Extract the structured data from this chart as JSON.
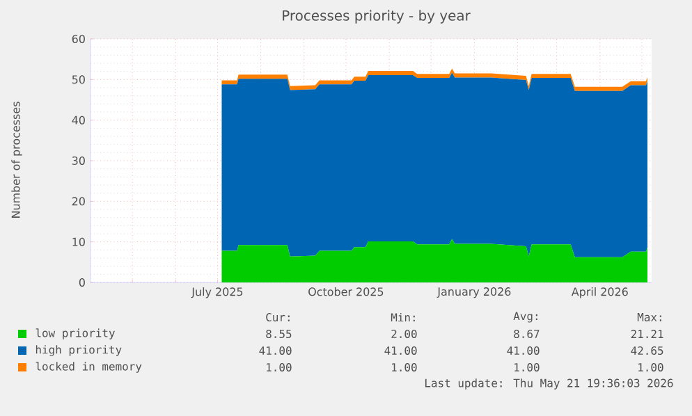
{
  "chart_data": {
    "type": "area",
    "stacked": true,
    "title": "Processes priority - by year",
    "ylabel": "Number of processes",
    "x": [
      "2025-07-04",
      "2025-07-15",
      "2025-07-16",
      "2025-08-20",
      "2025-08-22",
      "2025-09-09",
      "2025-09-12",
      "2025-10-05",
      "2025-10-07",
      "2025-10-15",
      "2025-10-17",
      "2025-11-18",
      "2025-11-21",
      "2025-12-14",
      "2025-12-16",
      "2025-12-18",
      "2026-01-13",
      "2026-02-07",
      "2026-02-09",
      "2026-02-11",
      "2026-03-11",
      "2026-03-14",
      "2026-04-17",
      "2026-04-23",
      "2026-05-04",
      "2026-05-05"
    ],
    "series": [
      {
        "name": "low priority",
        "color": "#00cc00",
        "values": [
          7.8,
          7.8,
          9.2,
          9.2,
          6.4,
          6.6,
          7.8,
          7.8,
          8.7,
          8.7,
          10.1,
          10.1,
          9.4,
          9.4,
          10.7,
          9.5,
          9.5,
          8.9,
          6.4,
          9.4,
          9.4,
          6.2,
          6.2,
          7.6,
          7.6,
          8.6
        ]
      },
      {
        "name": "high priority",
        "color": "#0066b3",
        "values": [
          41,
          41,
          41,
          41,
          41,
          41,
          41,
          41,
          41,
          41,
          41,
          41,
          41,
          41,
          41,
          41,
          41,
          41,
          41,
          41,
          41,
          41,
          41,
          41,
          41,
          41
        ]
      },
      {
        "name": "locked in memory",
        "color": "#ff8000",
        "values": [
          1,
          1,
          1,
          1,
          1,
          1,
          1,
          1,
          1,
          1,
          1,
          1,
          1,
          1,
          1,
          1,
          1,
          1,
          1,
          1,
          1,
          1,
          1,
          1,
          1,
          1
        ]
      }
    ],
    "xlim": [
      "2025-04-01",
      "2026-05-08"
    ],
    "xticks": [
      {
        "value": "2025-05-01",
        "label": null
      },
      {
        "value": "2025-06-01",
        "label": null
      },
      {
        "value": "2025-07-01",
        "label": "July 2025"
      },
      {
        "value": "2025-08-01",
        "label": null
      },
      {
        "value": "2025-09-01",
        "label": null
      },
      {
        "value": "2025-10-01",
        "label": "October 2025"
      },
      {
        "value": "2025-11-01",
        "label": null
      },
      {
        "value": "2025-12-01",
        "label": null
      },
      {
        "value": "2026-01-01",
        "label": "January 2026"
      },
      {
        "value": "2026-02-01",
        "label": null
      },
      {
        "value": "2026-03-01",
        "label": null
      },
      {
        "value": "2026-04-01",
        "label": "April 2026"
      },
      {
        "value": "2026-05-01",
        "label": null
      }
    ],
    "ylim": [
      0,
      60
    ],
    "yticks": [
      0,
      10,
      20,
      30,
      40,
      50,
      60
    ],
    "grid": true,
    "legend": "bottom",
    "annotations": [
      "Cur:",
      "Min:",
      "Avg:",
      "Max:",
      "8.55",
      "2.00",
      "8.67",
      "21.21",
      "41.00",
      "41.00",
      "41.00",
      "42.65",
      "1.00",
      "1.00",
      "1.00",
      "1.00",
      "Last update: Thu May 21 19:36:03 2026"
    ]
  }
}
